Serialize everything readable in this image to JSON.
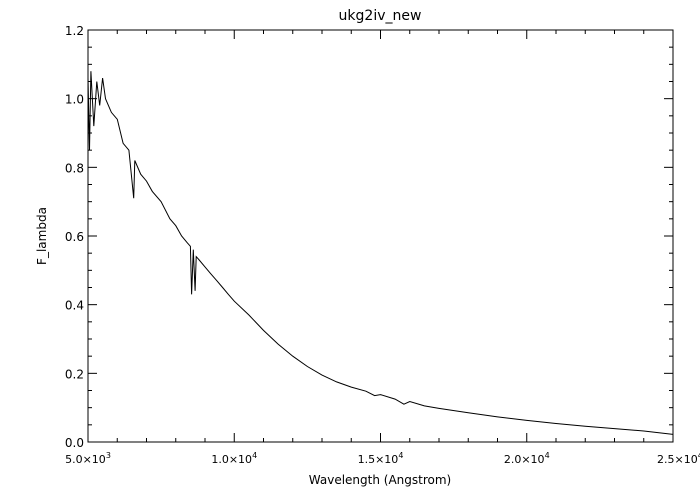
{
  "chart_data": {
    "type": "line",
    "title": "ukg2iv_new",
    "xlabel": "Wavelength (Angstrom)",
    "ylabel": "F_lambda",
    "xlim": [
      5000,
      25000
    ],
    "ylim": [
      0.0,
      1.2
    ],
    "grid": false,
    "legend": "none",
    "x_ticks": [
      5000,
      10000,
      15000,
      20000,
      25000
    ],
    "x_tick_labels": [
      {
        "mant": "5.0",
        "exp": "3"
      },
      {
        "mant": "1.0",
        "exp": "4"
      },
      {
        "mant": "1.5",
        "exp": "4"
      },
      {
        "mant": "2.0",
        "exp": "4"
      },
      {
        "mant": "2.5",
        "exp": "4"
      }
    ],
    "y_ticks": [
      0.0,
      0.2,
      0.4,
      0.6,
      0.8,
      1.0,
      1.2
    ],
    "y_tick_labels": [
      "0.0",
      "0.2",
      "0.4",
      "0.6",
      "0.8",
      "1.0",
      "1.2"
    ],
    "series": [
      {
        "line_color": "#000000",
        "x": [
          5000,
          5050,
          5100,
          5200,
          5300,
          5400,
          5500,
          5600,
          5800,
          6000,
          6200,
          6400,
          6563,
          6600,
          6800,
          7000,
          7200,
          7500,
          7800,
          8000,
          8200,
          8400,
          8500,
          8542,
          8600,
          8662,
          8700,
          8800,
          9000,
          9200,
          9400,
          9600,
          9800,
          10000,
          10500,
          11000,
          11500,
          12000,
          12500,
          13000,
          13500,
          14000,
          14500,
          14800,
          15000,
          15500,
          15800,
          16000,
          16500,
          17000,
          18000,
          19000,
          20000,
          21000,
          22000,
          23000,
          24000,
          25000
        ],
        "y": [
          1.06,
          0.85,
          1.08,
          0.92,
          1.05,
          0.98,
          1.06,
          1.0,
          0.96,
          0.94,
          0.87,
          0.85,
          0.71,
          0.82,
          0.78,
          0.76,
          0.73,
          0.7,
          0.65,
          0.63,
          0.6,
          0.58,
          0.57,
          0.43,
          0.56,
          0.44,
          0.54,
          0.53,
          0.51,
          0.49,
          0.47,
          0.45,
          0.43,
          0.41,
          0.37,
          0.325,
          0.285,
          0.25,
          0.22,
          0.195,
          0.175,
          0.16,
          0.148,
          0.135,
          0.138,
          0.125,
          0.11,
          0.118,
          0.105,
          0.098,
          0.085,
          0.073,
          0.063,
          0.054,
          0.046,
          0.039,
          0.032,
          0.022
        ]
      }
    ]
  }
}
